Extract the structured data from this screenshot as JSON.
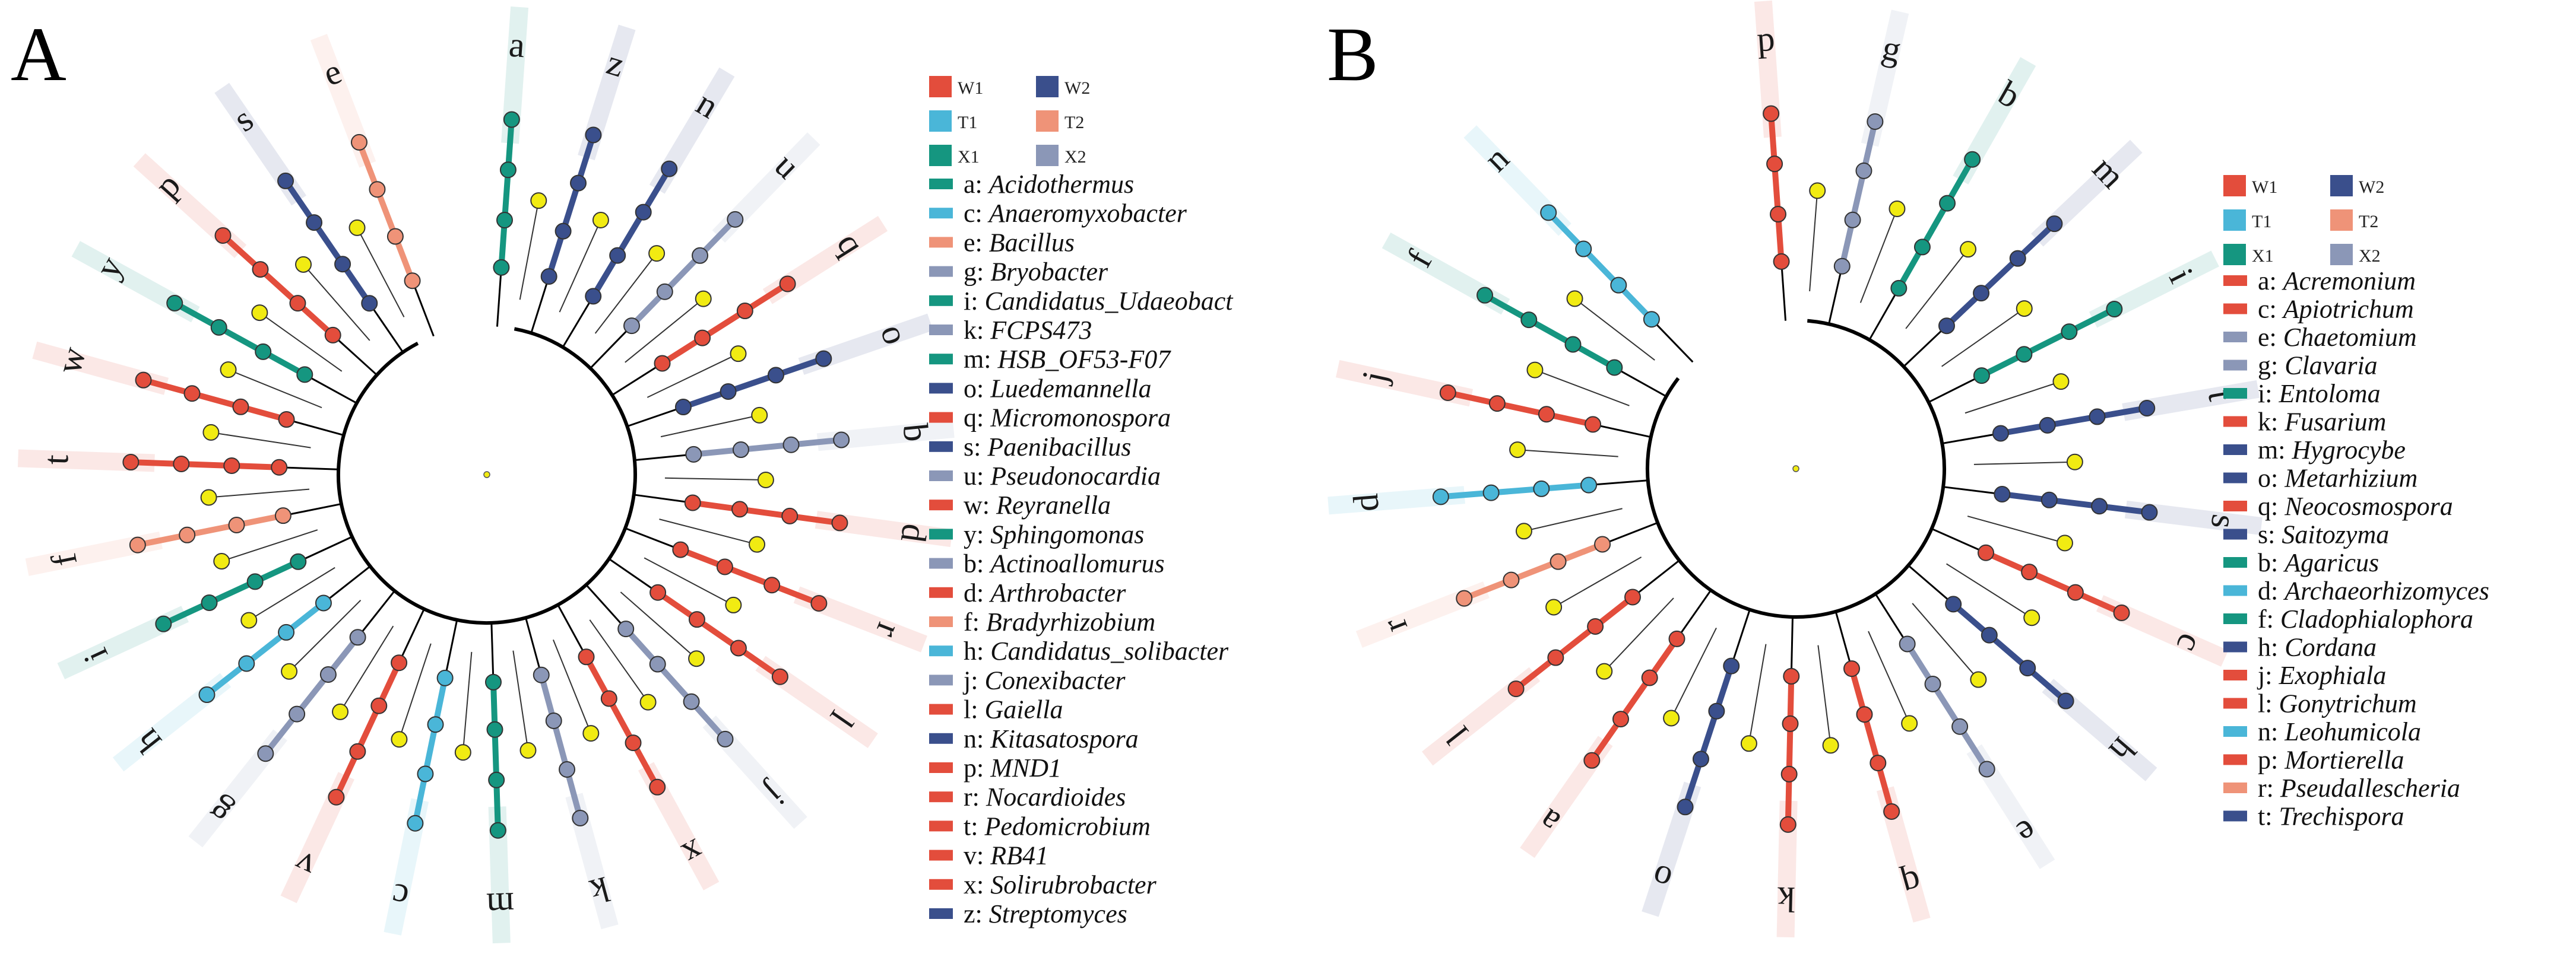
{
  "colors": {
    "W1": "#e34d3c",
    "W2": "#3a4f8c",
    "T1": "#4ab6d8",
    "T2": "#ef9378",
    "X1": "#159680",
    "X2": "#8b97b7",
    "node": "#f1eb12",
    "branch": "#000000"
  },
  "panels": [
    {
      "letter": "A",
      "legend_groups": [
        [
          "W1",
          "W2"
        ],
        [
          "T1",
          "T2"
        ],
        [
          "X1",
          "X2"
        ]
      ],
      "legend_taxa": [
        {
          "code": "a",
          "name": "Acidothermus",
          "group": "X1"
        },
        {
          "code": "c",
          "name": "Anaeromyxobacter",
          "group": "T1"
        },
        {
          "code": "e",
          "name": "Bacillus",
          "group": "T2"
        },
        {
          "code": "g",
          "name": "Bryobacter",
          "group": "X2"
        },
        {
          "code": "i",
          "name": "Candidatus_Udaeobact",
          "group": "X1"
        },
        {
          "code": "k",
          "name": "FCPS473",
          "group": "X2"
        },
        {
          "code": "m",
          "name": "HSB_OF53-F07",
          "group": "X1"
        },
        {
          "code": "o",
          "name": "Luedemannella",
          "group": "W2"
        },
        {
          "code": "q",
          "name": "Micromonospora",
          "group": "W1"
        },
        {
          "code": "s",
          "name": "Paenibacillus",
          "group": "W2"
        },
        {
          "code": "u",
          "name": "Pseudonocardia",
          "group": "X2"
        },
        {
          "code": "w",
          "name": "Reyranella",
          "group": "W1"
        },
        {
          "code": "y",
          "name": "Sphingomonas",
          "group": "X1"
        },
        {
          "code": "b",
          "name": "Actinoallomurus",
          "group": "X2"
        },
        {
          "code": "d",
          "name": "Arthrobacter",
          "group": "W1"
        },
        {
          "code": "f",
          "name": "Bradyrhizobium",
          "group": "T2"
        },
        {
          "code": "h",
          "name": "Candidatus_solibacter",
          "group": "T1"
        },
        {
          "code": "j",
          "name": "Conexibacter",
          "group": "X2"
        },
        {
          "code": "l",
          "name": "Gaiella",
          "group": "W1"
        },
        {
          "code": "n",
          "name": "Kitasatospora",
          "group": "W2"
        },
        {
          "code": "p",
          "name": "MND1",
          "group": "W1"
        },
        {
          "code": "r",
          "name": "Nocardioides",
          "group": "W1"
        },
        {
          "code": "t",
          "name": "Pedomicrobium",
          "group": "W1"
        },
        {
          "code": "v",
          "name": "RB41",
          "group": "W1"
        },
        {
          "code": "x",
          "name": "Solirubrobacter",
          "group": "W1"
        },
        {
          "code": "z",
          "name": "Streptomyces",
          "group": "W2"
        }
      ],
      "tree_labels": [
        {
          "code": "a",
          "group": "X1"
        },
        {
          "code": "z",
          "group": "W2"
        },
        {
          "code": "n",
          "group": "W2"
        },
        {
          "code": "u",
          "group": "X2"
        },
        {
          "code": "q",
          "group": "W1"
        },
        {
          "code": "o",
          "group": "W2"
        },
        {
          "code": "b",
          "group": "X2"
        },
        {
          "code": "d",
          "group": "W1"
        },
        {
          "code": "r",
          "group": "W1"
        },
        {
          "code": "l",
          "group": "W1"
        },
        {
          "code": "j",
          "group": "X2"
        },
        {
          "code": "x",
          "group": "W1"
        },
        {
          "code": "k",
          "group": "X2"
        },
        {
          "code": "m",
          "group": "X1"
        },
        {
          "code": "c",
          "group": "T1"
        },
        {
          "code": "v",
          "group": "W1"
        },
        {
          "code": "g",
          "group": "X2"
        },
        {
          "code": "h",
          "group": "T1"
        },
        {
          "code": "i",
          "group": "X1"
        },
        {
          "code": "f",
          "group": "T2"
        },
        {
          "code": "t",
          "group": "W1"
        },
        {
          "code": "w",
          "group": "W1"
        },
        {
          "code": "y",
          "group": "X1"
        },
        {
          "code": "p",
          "group": "W1"
        },
        {
          "code": "s",
          "group": "W2"
        },
        {
          "code": "e",
          "group": "T2"
        }
      ]
    },
    {
      "letter": "B",
      "legend_groups": [
        [
          "W1",
          "W2"
        ],
        [
          "T1",
          "T2"
        ],
        [
          "X1",
          "X2"
        ]
      ],
      "legend_taxa": [
        {
          "code": "a",
          "name": "Acremonium",
          "group": "W1"
        },
        {
          "code": "c",
          "name": "Apiotrichum",
          "group": "W1"
        },
        {
          "code": "e",
          "name": "Chaetomium",
          "group": "X2"
        },
        {
          "code": "g",
          "name": "Clavaria",
          "group": "X2"
        },
        {
          "code": "i",
          "name": "Entoloma",
          "group": "X1"
        },
        {
          "code": "k",
          "name": "Fusarium",
          "group": "W1"
        },
        {
          "code": "m",
          "name": "Hygrocybe",
          "group": "W2"
        },
        {
          "code": "o",
          "name": "Metarhizium",
          "group": "W2"
        },
        {
          "code": "q",
          "name": "Neocosmospora",
          "group": "W1"
        },
        {
          "code": "s",
          "name": "Saitozyma",
          "group": "W2"
        },
        {
          "code": "b",
          "name": "Agaricus",
          "group": "X1"
        },
        {
          "code": "d",
          "name": "Archaeorhizomyces",
          "group": "T1"
        },
        {
          "code": "f",
          "name": "Cladophialophora",
          "group": "X1"
        },
        {
          "code": "h",
          "name": "Cordana",
          "group": "W2"
        },
        {
          "code": "j",
          "name": "Exophiala",
          "group": "W1"
        },
        {
          "code": "l",
          "name": "Gonytrichum",
          "group": "W1"
        },
        {
          "code": "n",
          "name": "Leohumicola",
          "group": "T1"
        },
        {
          "code": "p",
          "name": "Mortierella",
          "group": "W1"
        },
        {
          "code": "r",
          "name": "Pseudallescheria",
          "group": "T2"
        },
        {
          "code": "t",
          "name": "Trechispora",
          "group": "W2"
        }
      ],
      "tree_labels": [
        {
          "code": "p",
          "group": "W1"
        },
        {
          "code": "g",
          "group": "X2"
        },
        {
          "code": "b",
          "group": "X1"
        },
        {
          "code": "m",
          "group": "W2"
        },
        {
          "code": "i",
          "group": "X1"
        },
        {
          "code": "t",
          "group": "W2"
        },
        {
          "code": "s",
          "group": "W2"
        },
        {
          "code": "c",
          "group": "W1"
        },
        {
          "code": "h",
          "group": "W2"
        },
        {
          "code": "e",
          "group": "X2"
        },
        {
          "code": "q",
          "group": "W1"
        },
        {
          "code": "k",
          "group": "W1"
        },
        {
          "code": "o",
          "group": "W2"
        },
        {
          "code": "a",
          "group": "W1"
        },
        {
          "code": "l",
          "group": "W1"
        },
        {
          "code": "r",
          "group": "T2"
        },
        {
          "code": "d",
          "group": "T1"
        },
        {
          "code": "j",
          "group": "W1"
        },
        {
          "code": "f",
          "group": "X1"
        },
        {
          "code": "n",
          "group": "T1"
        }
      ]
    }
  ]
}
